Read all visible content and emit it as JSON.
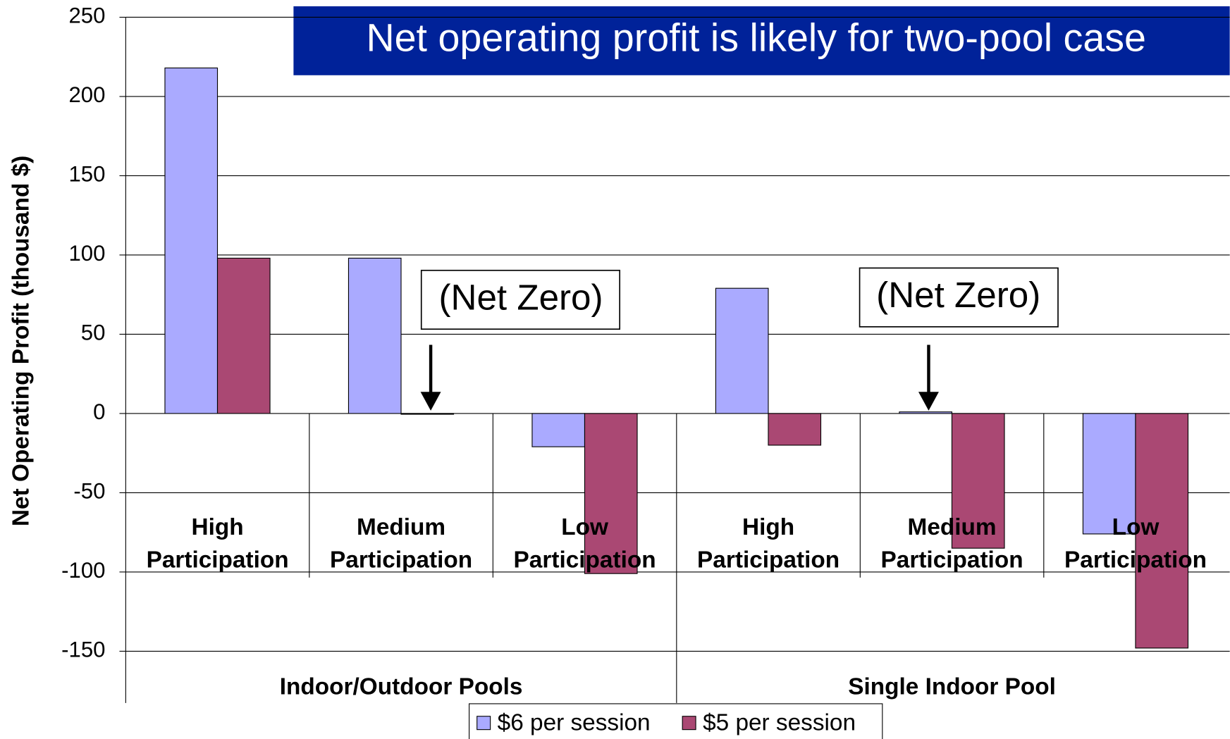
{
  "chart_data": {
    "type": "bar",
    "title": "Net operating profit is likely for two-pool case",
    "y_label": "Net Operating Profit (thousand $)",
    "categories": [
      "High Participation",
      "Medium Participation",
      "Low Participation",
      "High Participation",
      "Medium Participation",
      "Low Participation"
    ],
    "groups": [
      "Indoor/Outdoor Pools",
      "Single Indoor Pool"
    ],
    "series": [
      {
        "name": "$6 per session",
        "color": "#aaaaff",
        "values": [
          218,
          98,
          -21,
          79,
          1,
          -76
        ]
      },
      {
        "name": "$5 per session",
        "color": "#aa4873",
        "values": [
          98,
          0,
          -101,
          -20,
          -85,
          -148
        ]
      }
    ],
    "annotations": [
      "(Net Zero)",
      "(Net Zero)"
    ],
    "ylim": [
      -150,
      250
    ],
    "yticks": [
      -150,
      -100,
      -50,
      0,
      50,
      100,
      150,
      200,
      250
    ],
    "grid": true,
    "legend": "bottom"
  }
}
